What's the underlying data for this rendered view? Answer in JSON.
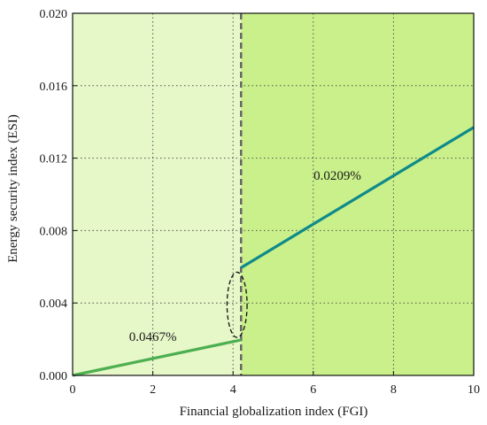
{
  "chart_data": {
    "type": "line",
    "xlabel": "Financial globalization index (FGI)",
    "ylabel": "Energy security index (ESI)",
    "xlim": [
      0,
      10
    ],
    "ylim": [
      0,
      0.02
    ],
    "x_ticks": [
      0,
      2,
      4,
      6,
      8,
      10
    ],
    "x_tick_labels": [
      "0",
      "2",
      "4",
      "6",
      "8",
      "10"
    ],
    "y_ticks": [
      0,
      0.004,
      0.008,
      0.012,
      0.016,
      0.02
    ],
    "y_tick_labels": [
      "0.000",
      "0.004",
      "0.008",
      "0.012",
      "0.016",
      "0.020"
    ],
    "grid": true,
    "threshold": 4.2,
    "regions": [
      {
        "x": [
          0,
          4.2
        ],
        "color": "#e6f7c8"
      },
      {
        "x": [
          4.2,
          10
        ],
        "color": "#c9f08a"
      }
    ],
    "series": [
      {
        "x": [
          0,
          4.2
        ],
        "y": [
          0,
          0.00196
        ],
        "color": "#4caf50"
      },
      {
        "x": [
          4.2,
          10
        ],
        "y": [
          0.00595,
          0.0137
        ],
        "color": "#0f8a8a"
      }
    ],
    "annotations": [
      {
        "text": "0.0467%",
        "x": 2.0,
        "y": 0.0019
      },
      {
        "text": "0.0209%",
        "x": 6.6,
        "y": 0.0108
      }
    ],
    "jump_marker": {
      "x": 4.1,
      "y_center": 0.0039,
      "rx": 0.25,
      "ry": 0.0018
    }
  }
}
